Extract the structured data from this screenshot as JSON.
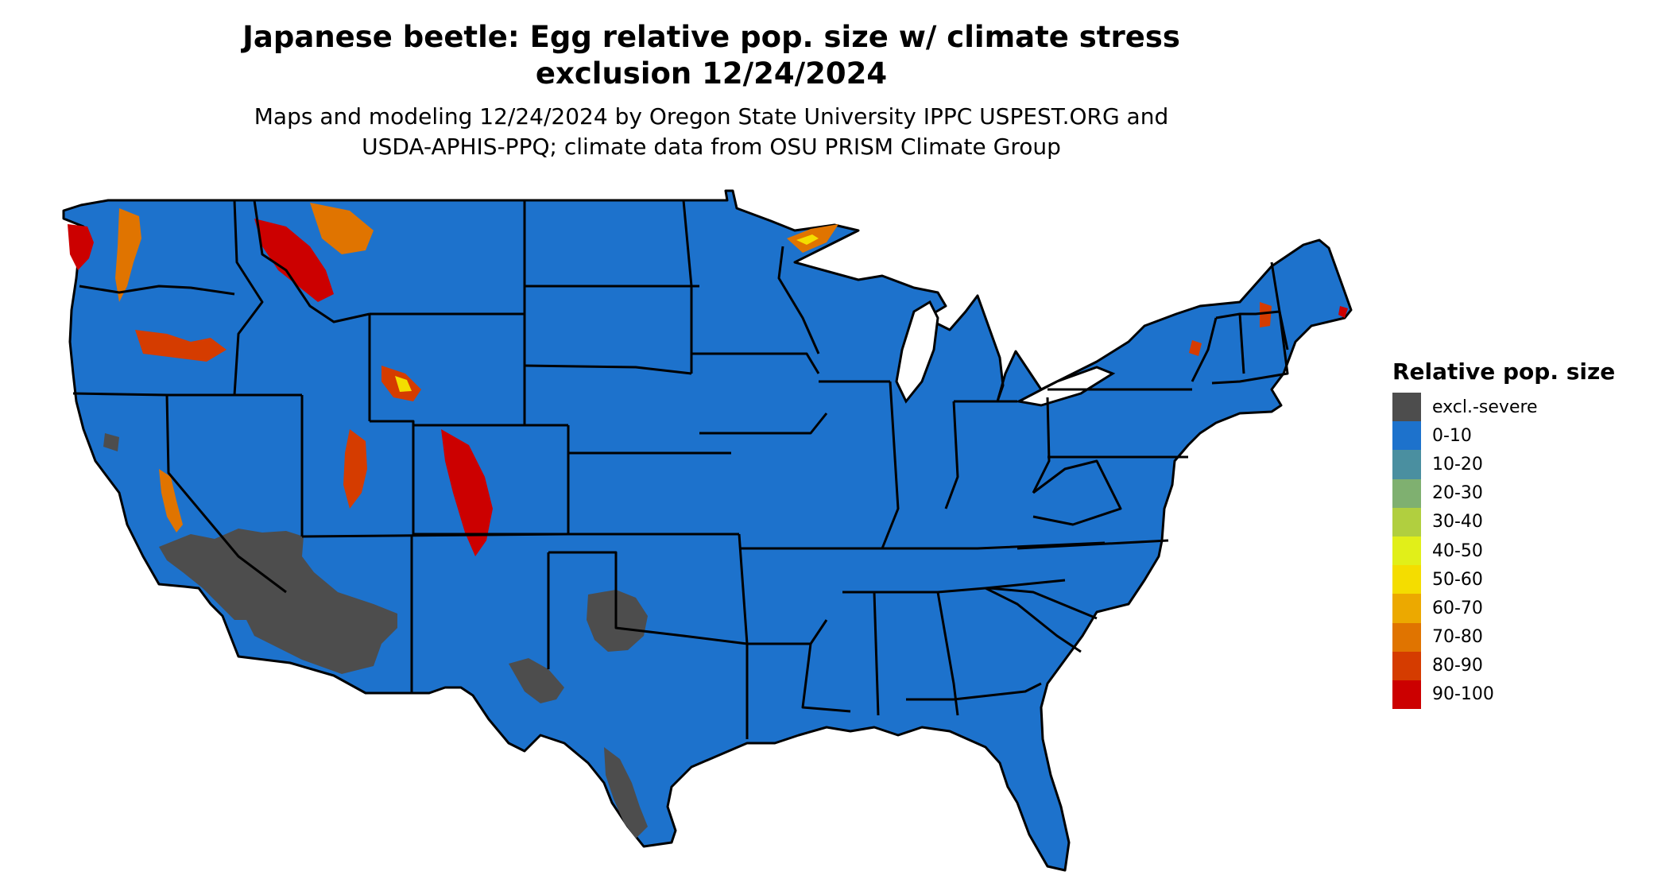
{
  "title": {
    "line1": "Japanese beetle: Egg relative pop. size w/ climate stress",
    "line2": "exclusion 12/24/2024"
  },
  "subtitle": {
    "line1": "Maps and modeling 12/24/2024 by Oregon State University IPPC USPEST.ORG and",
    "line2": "USDA-APHIS-PPQ; climate data from OSU PRISM Climate Group"
  },
  "colors": {
    "base": "#1d72cc",
    "excluded": "#4d4d4d",
    "border": "#000000",
    "hot": "#cc0000",
    "mid": "#e87000",
    "warm": "#f5e000",
    "cool": "#8fbc57"
  },
  "legend": {
    "title": "Relative pop. size",
    "items": [
      {
        "label": "excl.-severe",
        "color": "#4d4d4d"
      },
      {
        "label": "0-10",
        "color": "#1d72cc"
      },
      {
        "label": "10-20",
        "color": "#4a8fa0"
      },
      {
        "label": "20-30",
        "color": "#7fb070"
      },
      {
        "label": "30-40",
        "color": "#b1cf3f"
      },
      {
        "label": "40-50",
        "color": "#e1ef19"
      },
      {
        "label": "50-60",
        "color": "#f4dd00"
      },
      {
        "label": "60-70",
        "color": "#eca900"
      },
      {
        "label": "70-80",
        "color": "#e07400"
      },
      {
        "label": "80-90",
        "color": "#d53c00"
      },
      {
        "label": "90-100",
        "color": "#cc0000"
      }
    ]
  }
}
